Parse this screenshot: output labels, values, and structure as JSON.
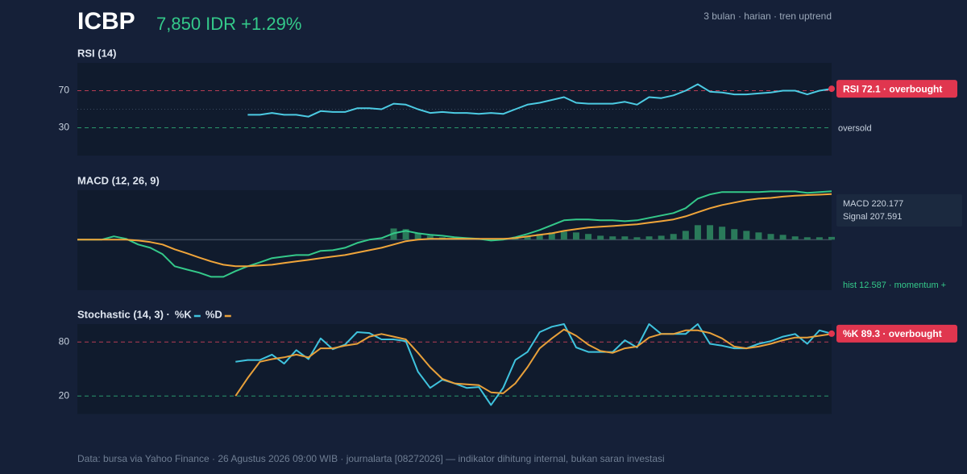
{
  "header": {
    "symbol": "ICBP",
    "quote": "7,850 IDR +1.29%",
    "meta": "3 bulan · harian · tren uptrend"
  },
  "chart_data": [
    {
      "type": "line",
      "title": "RSI (14)",
      "categories": [
        null,
        null,
        null,
        null,
        null,
        null,
        null,
        null,
        null,
        null,
        null,
        null,
        null,
        null,
        null,
        null,
        null,
        null,
        null,
        null,
        null,
        null,
        null,
        null,
        null,
        null,
        null,
        null,
        null,
        null,
        null,
        null,
        null,
        null,
        null,
        null,
        null,
        null,
        null,
        null,
        null,
        null,
        null,
        null,
        null,
        null,
        null,
        null,
        null,
        null,
        null,
        null,
        null,
        null,
        null,
        null,
        null,
        null,
        null,
        null,
        null,
        null,
        null
      ],
      "series": [
        {
          "color": "#4ccbe3",
          "values": [
            null,
            null,
            null,
            null,
            null,
            null,
            null,
            null,
            null,
            null,
            null,
            null,
            null,
            null,
            44,
            44,
            46,
            44,
            44,
            42,
            48,
            47,
            47,
            51,
            51,
            50,
            56,
            55,
            50,
            46,
            47,
            46,
            46,
            45,
            46,
            45,
            50,
            55,
            57,
            60,
            63,
            57,
            56,
            56,
            56,
            58,
            55,
            63,
            62,
            65,
            70,
            77,
            69,
            68,
            66,
            66,
            67,
            68,
            70,
            70,
            66,
            70,
            72.1
          ]
        }
      ],
      "ylim": [
        0,
        100
      ],
      "yticks": [
        70,
        30
      ],
      "ytick_colors": [
        "#e0455d",
        "#2fb67a"
      ],
      "midline": 50,
      "zone_label": "oversold",
      "badge": "RSI 72.1 · overbought",
      "badge_color": "#e0364f"
    },
    {
      "type": "line",
      "title": "MACD (12, 26, 9)",
      "categories": [
        null,
        null,
        null,
        null,
        null,
        null,
        null,
        null,
        null,
        null,
        null,
        null,
        null,
        null,
        null,
        null,
        null,
        null,
        null,
        null,
        null,
        null,
        null,
        null,
        null,
        null,
        null,
        null,
        null,
        null,
        null,
        null,
        null,
        null,
        null,
        null,
        null,
        null,
        null,
        null,
        null,
        null,
        null,
        null,
        null,
        null,
        null,
        null,
        null,
        null,
        null,
        null,
        null,
        null,
        null,
        null,
        null,
        null,
        null,
        null,
        null,
        null,
        null
      ],
      "series": [
        {
          "kind": "bar",
          "color": "#2a7a5a",
          "values": [
            null,
            null,
            null,
            null,
            null,
            null,
            null,
            null,
            null,
            null,
            null,
            null,
            null,
            null,
            null,
            null,
            null,
            null,
            null,
            null,
            null,
            null,
            null,
            null,
            null,
            null,
            51,
            48,
            29,
            18,
            11,
            7,
            7,
            4,
            4,
            7,
            11,
            18,
            26,
            33,
            37,
            33,
            26,
            18,
            15,
            15,
            11,
            15,
            18,
            26,
            40,
            66,
            66,
            59,
            48,
            40,
            33,
            26,
            22,
            15,
            11,
            11,
            12.587
          ]
        },
        {
          "color": "#34c98a",
          "values": [
            0,
            0,
            0,
            15,
            4,
            -22,
            -37,
            -66,
            -121,
            -136,
            -150,
            -169,
            -169,
            -143,
            -121,
            -103,
            -84,
            -77,
            -70,
            -70,
            -51,
            -48,
            -37,
            -15,
            0,
            7,
            29,
            40,
            29,
            22,
            18,
            11,
            7,
            4,
            -4,
            0,
            11,
            26,
            44,
            66,
            88,
            92,
            92,
            88,
            88,
            84,
            88,
            99,
            110,
            121,
            143,
            187,
            206,
            217,
            217,
            217,
            217,
            220,
            220,
            220,
            213,
            217,
            220.177
          ]
        },
        {
          "color": "#f0a53a",
          "values": [
            0,
            0,
            0,
            0,
            0,
            -4,
            -11,
            -22,
            -44,
            -62,
            -81,
            -99,
            -114,
            -121,
            -121,
            -117,
            -114,
            -106,
            -99,
            -92,
            -84,
            -77,
            -70,
            -59,
            -48,
            -37,
            -22,
            -7,
            0,
            4,
            4,
            4,
            4,
            4,
            4,
            4,
            7,
            15,
            22,
            29,
            40,
            48,
            55,
            59,
            62,
            66,
            70,
            77,
            84,
            92,
            106,
            125,
            143,
            158,
            169,
            180,
            187,
            190,
            196,
            200,
            203,
            205,
            207.591
          ]
        }
      ],
      "ylim": [
        -230,
        225
      ],
      "yticks": [],
      "readout": [
        "MACD 220.177",
        "Signal 207.591"
      ],
      "readout_colors": [
        "#34c98a",
        "#f0a53a"
      ],
      "hist_note": "hist 12.587 · momentum +"
    },
    {
      "type": "line",
      "title": "Stochastic (14, 3) ·",
      "legend": "title",
      "categories": [
        null,
        null,
        null,
        null,
        null,
        null,
        null,
        null,
        null,
        null,
        null,
        null,
        null,
        null,
        null,
        null,
        null,
        null,
        null,
        null,
        null,
        null,
        null,
        null,
        null,
        null,
        null,
        null,
        null,
        null,
        null,
        null,
        null,
        null,
        null,
        null,
        null,
        null,
        null,
        null,
        null,
        null,
        null,
        null,
        null,
        null,
        null,
        null,
        null,
        null,
        null,
        null,
        null,
        null,
        null,
        null,
        null,
        null,
        null,
        null,
        null,
        null,
        null
      ],
      "series": [
        {
          "name": "%K",
          "color": "#3fc3de",
          "values": [
            null,
            null,
            null,
            null,
            null,
            null,
            null,
            null,
            null,
            null,
            null,
            null,
            null,
            58,
            60,
            60,
            66,
            56,
            71,
            61,
            84,
            72,
            77,
            91,
            90,
            83,
            83,
            81,
            47,
            29,
            38,
            34,
            29,
            30,
            10,
            29,
            60,
            69,
            91,
            97,
            100,
            74,
            69,
            69,
            69,
            82,
            74,
            100,
            89,
            89,
            89,
            100,
            78,
            76,
            73,
            73,
            78,
            81,
            86,
            89,
            78,
            93,
            89.3
          ]
        },
        {
          "name": "%D",
          "color": "#e8a03a",
          "values": [
            null,
            null,
            null,
            null,
            null,
            null,
            null,
            null,
            null,
            null,
            null,
            null,
            null,
            20,
            40,
            58,
            61,
            63,
            66,
            63,
            73,
            73,
            76,
            78,
            86,
            89,
            86,
            83,
            68,
            52,
            39,
            34,
            33,
            32,
            24,
            23,
            34,
            52,
            73,
            84,
            94,
            87,
            77,
            70,
            68,
            73,
            75,
            85,
            89,
            89,
            93,
            93,
            90,
            84,
            75,
            73,
            75,
            78,
            82,
            85,
            85,
            87,
            89
          ]
        }
      ],
      "ylim": [
        0,
        100
      ],
      "yticks": [
        80,
        20
      ],
      "ytick_colors": [
        "#e0455d",
        "#2fb67a"
      ],
      "badge": "%K 89.3 · overbought",
      "badge_color": "#e0364f"
    }
  ],
  "footer": "Data: bursa via Yahoo Finance · 26 Agustus 2026 09:00 WIB · journalarta [08272026] — indikator dihitung internal, bukan saran investasi"
}
